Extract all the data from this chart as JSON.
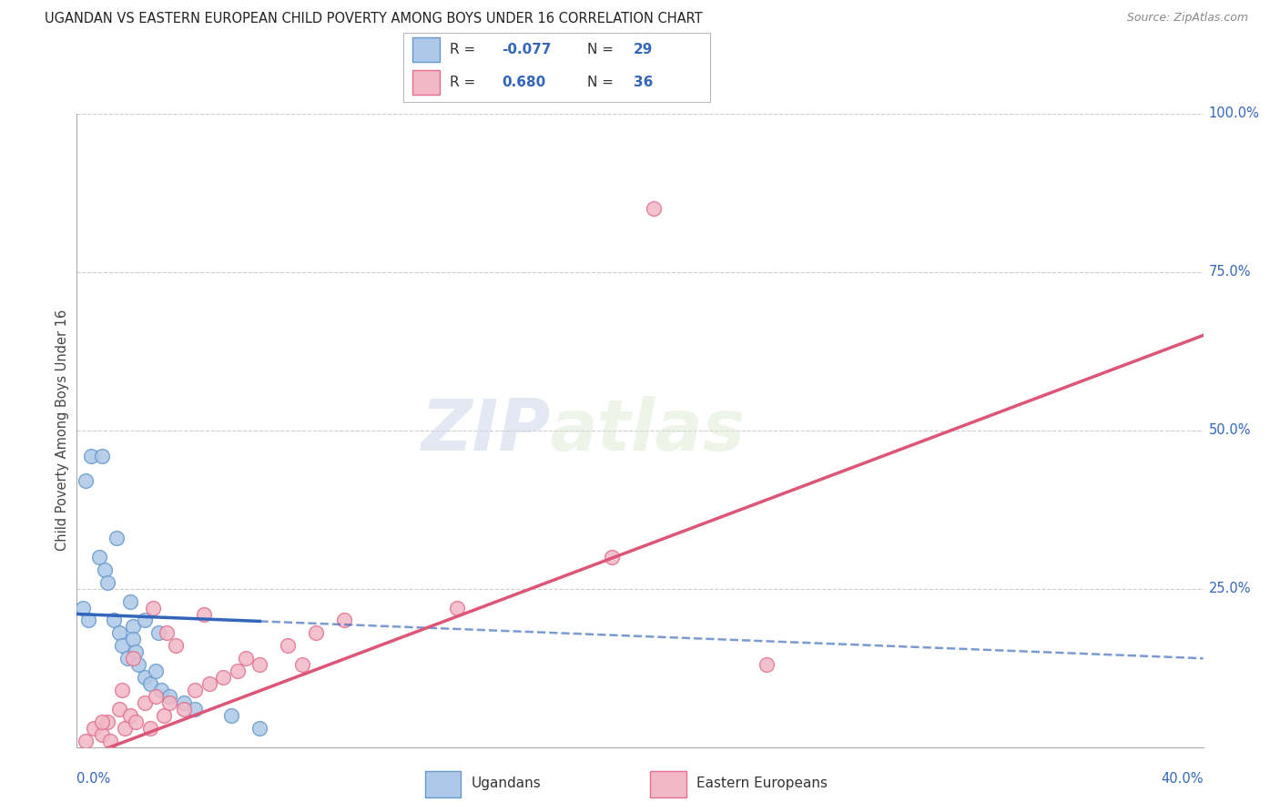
{
  "title": "UGANDAN VS EASTERN EUROPEAN CHILD POVERTY AMONG BOYS UNDER 16 CORRELATION CHART",
  "source": "Source: ZipAtlas.com",
  "ylabel": "Child Poverty Among Boys Under 16",
  "ugandan_color": "#adc8e8",
  "ugandan_edge": "#6699cc",
  "eastern_color": "#f2b8c6",
  "eastern_edge": "#e07090",
  "ugandan_line_color": "#3366bb",
  "eastern_line_color": "#dd5577",
  "watermark_zip": "ZIP",
  "watermark_atlas": "atlas",
  "xmin": 0.0,
  "xmax": 40.0,
  "ymin": 0.0,
  "ymax": 100.0,
  "ugandan_points": [
    [
      0.3,
      42
    ],
    [
      0.5,
      46
    ],
    [
      0.8,
      30
    ],
    [
      1.0,
      28
    ],
    [
      1.1,
      26
    ],
    [
      1.3,
      20
    ],
    [
      1.5,
      18
    ],
    [
      1.6,
      16
    ],
    [
      1.8,
      14
    ],
    [
      2.0,
      19
    ],
    [
      2.0,
      17
    ],
    [
      2.1,
      15
    ],
    [
      2.2,
      13
    ],
    [
      2.4,
      11
    ],
    [
      2.6,
      10
    ],
    [
      2.8,
      12
    ],
    [
      3.0,
      9
    ],
    [
      3.3,
      8
    ],
    [
      3.8,
      7
    ],
    [
      4.2,
      6
    ],
    [
      0.9,
      46
    ],
    [
      1.4,
      33
    ],
    [
      1.9,
      23
    ],
    [
      2.4,
      20
    ],
    [
      2.9,
      18
    ],
    [
      0.2,
      22
    ],
    [
      0.4,
      20
    ],
    [
      5.5,
      5
    ],
    [
      6.5,
      3
    ]
  ],
  "eastern_points": [
    [
      0.3,
      1
    ],
    [
      0.6,
      3
    ],
    [
      0.9,
      2
    ],
    [
      1.1,
      4
    ],
    [
      1.2,
      1
    ],
    [
      1.5,
      6
    ],
    [
      1.7,
      3
    ],
    [
      1.9,
      5
    ],
    [
      2.1,
      4
    ],
    [
      2.4,
      7
    ],
    [
      2.6,
      3
    ],
    [
      2.8,
      8
    ],
    [
      3.1,
      5
    ],
    [
      3.3,
      7
    ],
    [
      3.8,
      6
    ],
    [
      4.2,
      9
    ],
    [
      4.7,
      10
    ],
    [
      5.2,
      11
    ],
    [
      5.7,
      12
    ],
    [
      6.0,
      14
    ],
    [
      6.5,
      13
    ],
    [
      7.5,
      16
    ],
    [
      8.5,
      18
    ],
    [
      9.5,
      20
    ],
    [
      13.5,
      22
    ],
    [
      19.0,
      30
    ],
    [
      20.5,
      85
    ],
    [
      3.2,
      18
    ],
    [
      3.5,
      16
    ],
    [
      2.0,
      14
    ],
    [
      1.6,
      9
    ],
    [
      0.9,
      4
    ],
    [
      2.7,
      22
    ],
    [
      4.5,
      21
    ],
    [
      8.0,
      13
    ],
    [
      24.5,
      13
    ]
  ],
  "ug_line_x0": 0.0,
  "ug_line_x1": 40.0,
  "ug_line_y0": 21.0,
  "ug_line_y1": 14.0,
  "ug_solid_x1": 6.5,
  "ee_line_x0": 0.0,
  "ee_line_x1": 40.0,
  "ee_line_y0": -2.0,
  "ee_line_y1": 65.0
}
